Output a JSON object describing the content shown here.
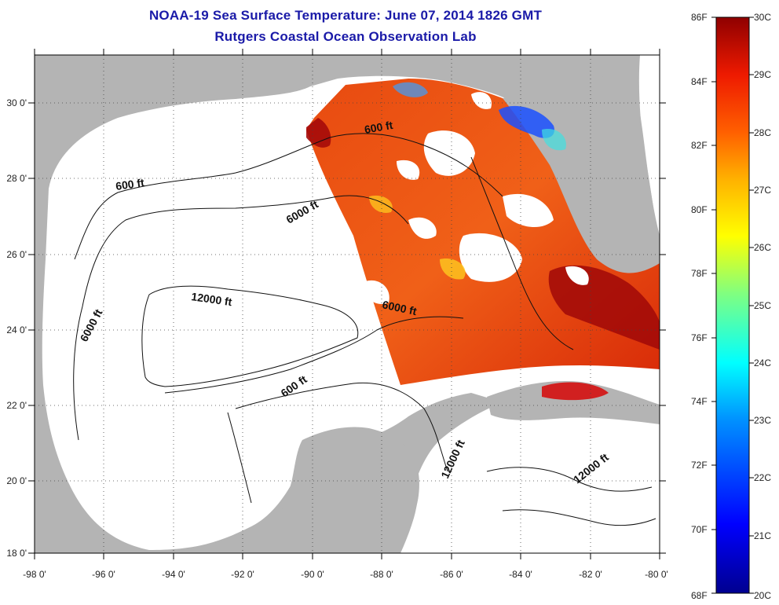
{
  "title": {
    "line1": "NOAA-19 Sea Surface Temperature:  June 07, 2014 1826 GMT",
    "line2": "Rutgers Coastal Ocean Observation Lab"
  },
  "map": {
    "lon_range": [
      -98,
      -80
    ],
    "lat_range": [
      18,
      31
    ],
    "lon_ticks": [
      "-98 0'",
      "-96 0'",
      "-94 0'",
      "-92 0'",
      "-90 0'",
      "-88 0'",
      "-86 0'",
      "-84 0'",
      "-82 0'",
      "-80 0'"
    ],
    "lat_ticks": [
      "18 0'",
      "20 0'",
      "22 0'",
      "24 0'",
      "26 0'",
      "28 0'",
      "30 0'"
    ],
    "contour_labels": [
      "600 ft",
      "600 ft",
      "6000 ft",
      "12000 ft",
      "6000 ft",
      "6000 ft",
      "600 ft",
      "12000 ft",
      "12000 ft"
    ],
    "land_color": "#b4b4b4",
    "water_color": "#ffffff"
  },
  "colorbar": {
    "fahrenheit": [
      "86F",
      "84F",
      "82F",
      "80F",
      "78F",
      "76F",
      "74F",
      "72F",
      "70F",
      "68F"
    ],
    "celsius": [
      "30C",
      "29C",
      "28C",
      "27C",
      "26C",
      "25C",
      "24C",
      "23C",
      "22C",
      "21C",
      "20C"
    ]
  }
}
